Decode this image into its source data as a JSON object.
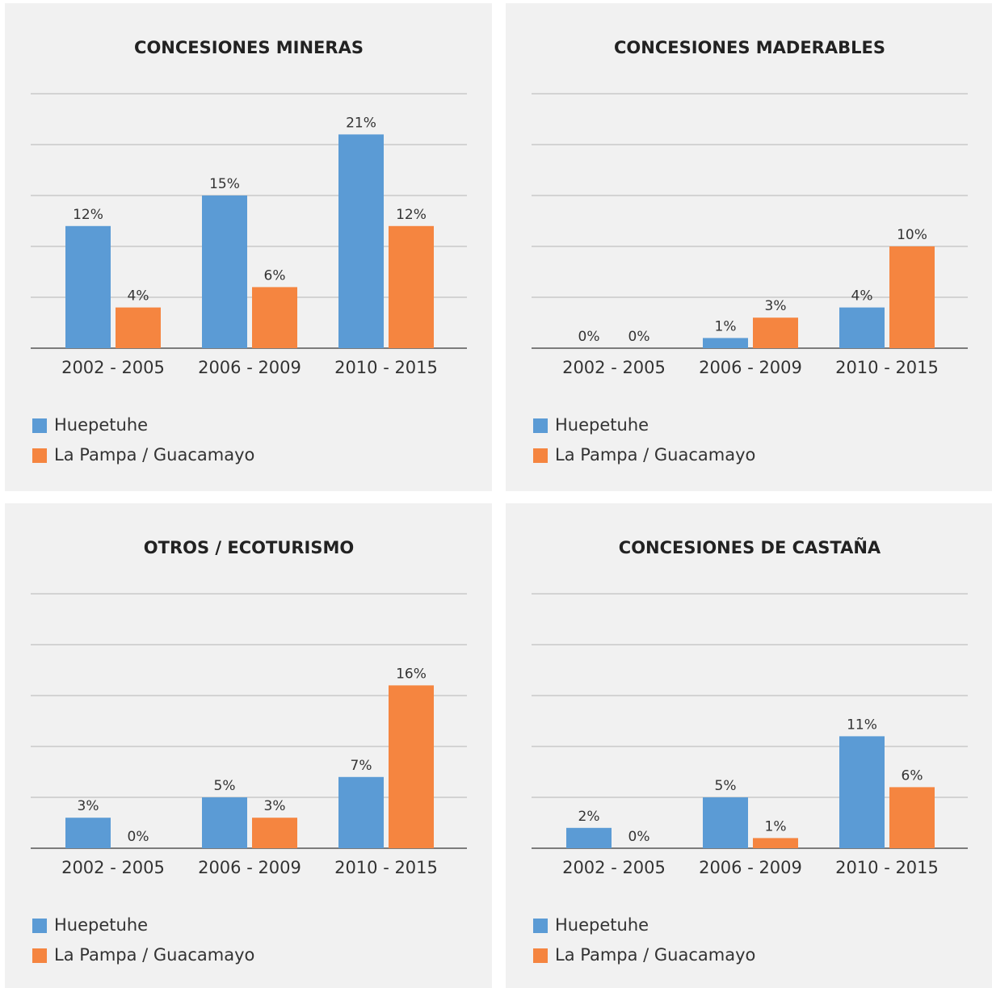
{
  "chart_data": [
    {
      "type": "bar",
      "title": "CONCESIONES MINERAS",
      "categories": [
        "2002 - 2005",
        "2006 - 2009",
        "2010 - 2015"
      ],
      "series": [
        {
          "name": "Huepetuhe",
          "color": "#5b9bd5",
          "values": [
            12,
            15,
            21
          ],
          "value_labels": [
            "12%",
            "15%",
            "21%"
          ]
        },
        {
          "name": "La Pampa / Guacamayo",
          "color": "#f58540",
          "values": [
            4,
            6,
            12
          ],
          "value_labels": [
            "4%",
            "6%",
            "12%"
          ]
        }
      ],
      "ylim": [
        0,
        25
      ],
      "yticks": [
        0,
        5,
        10,
        15,
        20,
        25
      ],
      "grid": true
    },
    {
      "type": "bar",
      "title": "CONCESIONES MADERABLES",
      "categories": [
        "2002 - 2005",
        "2006 - 2009",
        "2010 - 2015"
      ],
      "series": [
        {
          "name": "Huepetuhe",
          "color": "#5b9bd5",
          "values": [
            0,
            1,
            4
          ],
          "value_labels": [
            "0%",
            "1%",
            "4%"
          ]
        },
        {
          "name": "La Pampa / Guacamayo",
          "color": "#f58540",
          "values": [
            0,
            3,
            10
          ],
          "value_labels": [
            "0%",
            "3%",
            "10%"
          ]
        }
      ],
      "ylim": [
        0,
        25
      ],
      "yticks": [
        0,
        5,
        10,
        15,
        20,
        25
      ],
      "grid": true
    },
    {
      "type": "bar",
      "title": "OTROS / ECOTURISMO",
      "categories": [
        "2002 - 2005",
        "2006 - 2009",
        "2010 - 2015"
      ],
      "series": [
        {
          "name": "Huepetuhe",
          "color": "#5b9bd5",
          "values": [
            3,
            5,
            7
          ],
          "value_labels": [
            "3%",
            "5%",
            "7%"
          ]
        },
        {
          "name": "La Pampa / Guacamayo",
          "color": "#f58540",
          "values": [
            0,
            3,
            16
          ],
          "value_labels": [
            "0%",
            "3%",
            "16%"
          ]
        }
      ],
      "ylim": [
        0,
        25
      ],
      "yticks": [
        0,
        5,
        10,
        15,
        20,
        25
      ],
      "grid": true
    },
    {
      "type": "bar",
      "title": "CONCESIONES DE CASTAÑA",
      "categories": [
        "2002 - 2005",
        "2006 - 2009",
        "2010 - 2015"
      ],
      "series": [
        {
          "name": "Huepetuhe",
          "color": "#5b9bd5",
          "values": [
            2,
            5,
            11
          ],
          "value_labels": [
            "2%",
            "5%",
            "11%"
          ]
        },
        {
          "name": "La Pampa / Guacamayo",
          "color": "#f58540",
          "values": [
            0,
            1,
            6
          ],
          "value_labels": [
            "0%",
            "1%",
            "6%"
          ]
        }
      ],
      "ylim": [
        0,
        25
      ],
      "yticks": [
        0,
        5,
        10,
        15,
        20,
        25
      ],
      "grid": true
    }
  ]
}
